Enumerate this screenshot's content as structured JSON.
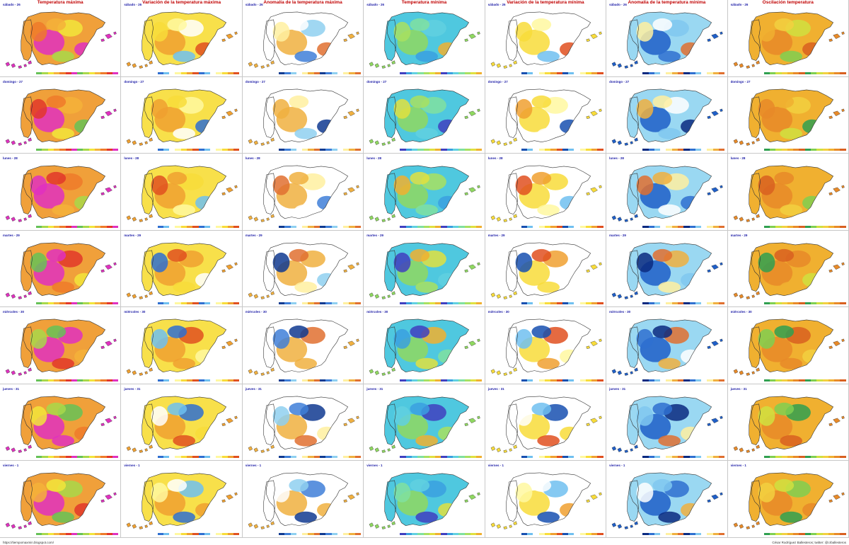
{
  "columns": [
    {
      "title": "Temperatura máxima",
      "palette": [
        "#66c257",
        "#a8d84a",
        "#f2e53b",
        "#f5b23a",
        "#ee7a2a",
        "#e2372a",
        "#e030c0"
      ],
      "bg": "#f0a03a",
      "core": "#e030c0"
    },
    {
      "title": "Variación de la temperatura máxima",
      "palette": [
        "#2f6fd0",
        "#6fc0f0",
        "#ffffff",
        "#fff8a0",
        "#f8dc3a",
        "#f0a030",
        "#e05020"
      ],
      "bg": "#f8e04a",
      "core": "#f0a030"
    },
    {
      "title": "Anomalía de la temperatura máxima",
      "palette": [
        "#103a90",
        "#3f7fd8",
        "#8fd0f0",
        "#ffffff",
        "#fff0a0",
        "#f0b040",
        "#e07030"
      ],
      "bg": "#ffffff",
      "core": "#f0b040"
    },
    {
      "title": "Temperatura mínima",
      "palette": [
        "#4040c0",
        "#3aa0e0",
        "#60d0e0",
        "#80e0a0",
        "#a8e060",
        "#e0e040",
        "#f0b030"
      ],
      "bg": "#4fc8df",
      "core": "#8fd860"
    },
    {
      "title": "Variación de la temperatura mínima",
      "palette": [
        "#1850b0",
        "#70c0f0",
        "#ffffff",
        "#fff8a0",
        "#f8dc3a",
        "#f0a030",
        "#e05020"
      ],
      "bg": "#ffffff",
      "core": "#f8dc3a"
    },
    {
      "title": "Anomalía de la temperatura mínima",
      "palette": [
        "#0a2a80",
        "#2f70d0",
        "#80c8f0",
        "#ffffff",
        "#fff0a0",
        "#f0b040",
        "#e07030"
      ],
      "bg": "#9ad8f2",
      "core": "#1f5fc8"
    },
    {
      "title": "Oscilación temperatura",
      "palette": [
        "#30a050",
        "#80cf50",
        "#d0e040",
        "#f2d040",
        "#f0b030",
        "#e88a28",
        "#d86020"
      ],
      "bg": "#f0b030",
      "core": "#e88a28"
    }
  ],
  "rows": [
    {
      "day": "sábado - 26"
    },
    {
      "day": "domingo - 27"
    },
    {
      "day": "lunes - 28"
    },
    {
      "day": "martes - 29"
    },
    {
      "day": "miércoles - 30"
    },
    {
      "day": "jueves - 31"
    },
    {
      "day": "viernes - 1"
    }
  ],
  "footer": {
    "left": "https://tiempomaxmin.blogspot.com/",
    "right": "César Rodríguez Ballesteros; twitter: @crballesteros"
  }
}
